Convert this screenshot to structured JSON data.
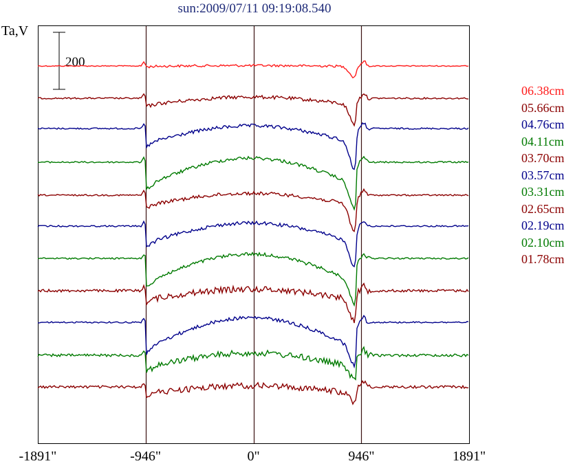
{
  "title": "sun:2009/07/11 09:19:08.540",
  "ylabel": "Ta,V",
  "scale_bar_label": "200",
  "chart_data": {
    "type": "line",
    "title": "sun:2009/07/11 09:19:08.540",
    "ylabel": "Ta,V",
    "xlabel": "",
    "x_ticks": [
      "-1891\"",
      "-946\"",
      "0\"",
      "946\"",
      "1891\""
    ],
    "xlim": [
      -1891,
      1891
    ],
    "vertical_markers": [
      -946,
      0,
      946
    ],
    "scale_bar_value": 200,
    "series": [
      {
        "name": "06.38cm",
        "color": "#ff1a1a",
        "baseline": 96,
        "profile": "flat",
        "depth": 4,
        "dip": 16
      },
      {
        "name": "05.66cm",
        "color": "#8b0000",
        "baseline": 143,
        "profile": "dome",
        "depth": 12,
        "dip": 28
      },
      {
        "name": "04.76cm",
        "color": "#00008b",
        "baseline": 187,
        "profile": "dome",
        "depth": 26,
        "dip": 38
      },
      {
        "name": "04.11cm",
        "color": "#007a00",
        "baseline": 236,
        "profile": "dome",
        "depth": 40,
        "dip": 36
      },
      {
        "name": "03.70cm",
        "color": "#8b0000",
        "baseline": 284,
        "profile": "dome",
        "depth": 18,
        "dip": 38
      },
      {
        "name": "03.57cm",
        "color": "#00008b",
        "baseline": 329,
        "profile": "dome",
        "depth": 30,
        "dip": 34
      },
      {
        "name": "03.31cm",
        "color": "#007a00",
        "baseline": 376,
        "profile": "dome",
        "depth": 42,
        "dip": 32
      },
      {
        "name": "02.65cm",
        "color": "#8b0000",
        "baseline": 423,
        "profile": "noisy",
        "depth": 16,
        "dip": 30
      },
      {
        "name": "02.19cm",
        "color": "#00008b",
        "baseline": 469,
        "profile": "dome",
        "depth": 45,
        "dip": 26
      },
      {
        "name": "02.10cm",
        "color": "#007a00",
        "baseline": 517,
        "profile": "noisy",
        "depth": 22,
        "dip": 18
      },
      {
        "name": "01.78cm",
        "color": "#8b0000",
        "baseline": 563,
        "profile": "noisy",
        "depth": 12,
        "dip": 12
      }
    ]
  }
}
